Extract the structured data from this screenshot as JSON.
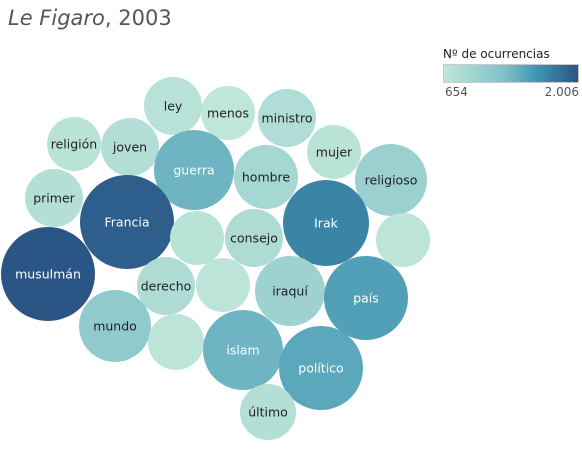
{
  "title_paper": "Le Figaro",
  "title_rest": ", 2003",
  "legend": {
    "title": "Nº de ocurrencias",
    "min_label": "654",
    "max_label": "2.006",
    "color_low": "#bfe6d9",
    "color_high": "#2b5585"
  },
  "chart_data": {
    "type": "bubble",
    "title": "Le Figaro, 2003",
    "size_and_color_measure": "Nº de ocurrencias",
    "range": [
      654,
      2006
    ],
    "bubbles": [
      {
        "label": "ley",
        "value": 720
      },
      {
        "label": "menos",
        "value": 654
      },
      {
        "label": "ministro",
        "value": 800
      },
      {
        "label": "religión",
        "value": 700
      },
      {
        "label": "joven",
        "value": 780
      },
      {
        "label": "guerra",
        "value": 1350
      },
      {
        "label": "hombre",
        "value": 900
      },
      {
        "label": "mujer",
        "value": 700
      },
      {
        "label": "religioso",
        "value": 1000
      },
      {
        "label": "primer",
        "value": 760
      },
      {
        "label": "Francia",
        "value": 1950
      },
      {
        "label": "",
        "value": 700
      },
      {
        "label": "consejo",
        "value": 820
      },
      {
        "label": "Irak",
        "value": 1700
      },
      {
        "label": "",
        "value": 680
      },
      {
        "label": "musulmán",
        "value": 2006
      },
      {
        "label": "derecho",
        "value": 820
      },
      {
        "label": "",
        "value": 680
      },
      {
        "label": "iraquí",
        "value": 980
      },
      {
        "label": "país",
        "value": 1500
      },
      {
        "label": "mundo",
        "value": 1100
      },
      {
        "label": "",
        "value": 680
      },
      {
        "label": "islam",
        "value": 1350
      },
      {
        "label": "político",
        "value": 1450
      },
      {
        "label": "último",
        "value": 760
      }
    ]
  }
}
